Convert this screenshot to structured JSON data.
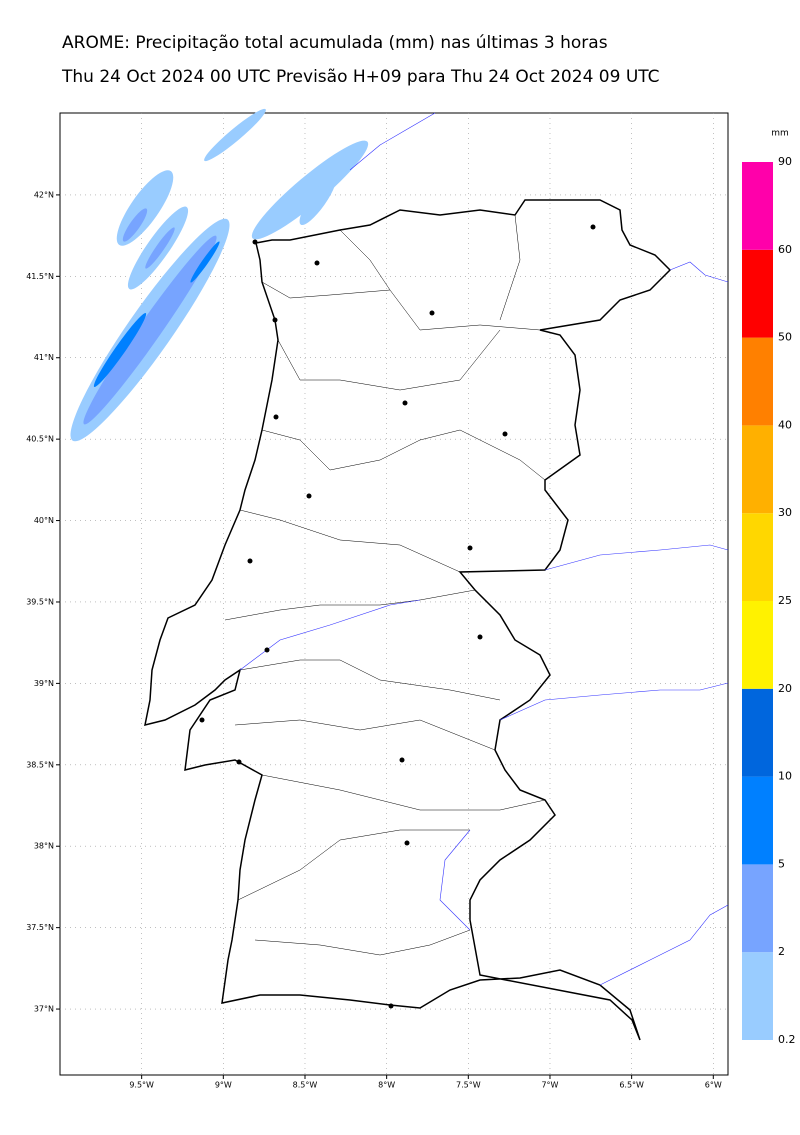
{
  "title": "AROME: Precipitação total acumulada (mm) nas últimas 3 horas",
  "subtitle": "Thu 24 Oct 2024 00 UTC Previsão H+09 para Thu 24 Oct 2024 09 UTC",
  "map": {
    "xlim": [
      -10.0,
      -5.91
    ],
    "ylim": [
      36.595,
      42.503
    ],
    "xticks": [
      {
        "value": -9.5,
        "label": "9.5°W"
      },
      {
        "value": -9,
        "label": "9°W"
      },
      {
        "value": -8.5,
        "label": "8.5°W"
      },
      {
        "value": -8,
        "label": "8°W"
      },
      {
        "value": -7.5,
        "label": "7.5°W"
      },
      {
        "value": -7,
        "label": "7°W"
      },
      {
        "value": -6.5,
        "label": "6.5°W"
      },
      {
        "value": -6,
        "label": "6°W"
      }
    ],
    "yticks": [
      {
        "value": 42,
        "label": "42°N"
      },
      {
        "value": 41.5,
        "label": "41.5°N"
      },
      {
        "value": 41,
        "label": "41°N"
      },
      {
        "value": 40.5,
        "label": "40.5°N"
      },
      {
        "value": 40,
        "label": "40°N"
      },
      {
        "value": 39.5,
        "label": "39.5°N"
      },
      {
        "value": 39,
        "label": "39°N"
      },
      {
        "value": 38.5,
        "label": "38.5°N"
      },
      {
        "value": 38,
        "label": "38°N"
      },
      {
        "value": 37.5,
        "label": "37.5°N"
      },
      {
        "value": 37,
        "label": "37°N"
      }
    ],
    "grid": true
  },
  "colorbar": {
    "unit": "mm",
    "levels": [
      0.2,
      2,
      5,
      10,
      20,
      25,
      30,
      40,
      50,
      60,
      90
    ],
    "colors": [
      "#99ccff",
      "#77a4ff",
      "#0080ff",
      "#0066dd",
      "#fff200",
      "#ffd700",
      "#ffb000",
      "#ff8000",
      "#ff0000",
      "#ff00aa"
    ]
  }
}
